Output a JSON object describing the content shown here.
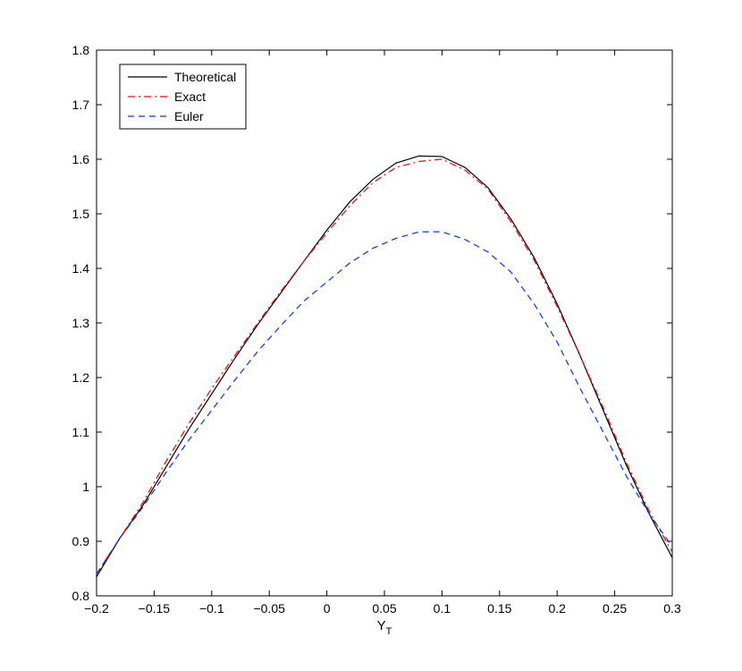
{
  "chart_data": {
    "type": "line",
    "xlabel_main": "Y",
    "xlabel_sub": "T",
    "ylabel": "",
    "title": "",
    "xlim": [
      -0.2,
      0.3
    ],
    "ylim": [
      0.8,
      1.8
    ],
    "xticks": [
      -0.2,
      -0.15,
      -0.1,
      -0.05,
      0,
      0.05,
      0.1,
      0.15,
      0.2,
      0.25,
      0.3
    ],
    "xtick_labels": [
      "−0.2",
      "−0.15",
      "−0.1",
      "−0.05",
      "0",
      "0.05",
      "0.1",
      "0.15",
      "0.2",
      "0.25",
      "0.3"
    ],
    "yticks": [
      0.8,
      0.9,
      1,
      1.1,
      1.2,
      1.3,
      1.4,
      1.5,
      1.6,
      1.7,
      1.8
    ],
    "ytick_labels": [
      "0.8",
      "0.9",
      "1",
      "1.1",
      "1.2",
      "1.3",
      "1.4",
      "1.5",
      "1.6",
      "1.7",
      "1.8"
    ],
    "grid": false,
    "legend_position": "top-left",
    "x": [
      -0.2,
      -0.18,
      -0.16,
      -0.14,
      -0.12,
      -0.1,
      -0.08,
      -0.06,
      -0.04,
      -0.02,
      0,
      0.02,
      0.04,
      0.06,
      0.08,
      0.1,
      0.12,
      0.14,
      0.16,
      0.18,
      0.2,
      0.22,
      0.24,
      0.26,
      0.28,
      0.3
    ],
    "series": [
      {
        "name": "Theoretical",
        "color": "#000000",
        "dash": "solid",
        "values": [
          0.835,
          0.905,
          0.965,
          1.035,
          1.105,
          1.17,
          1.235,
          1.297,
          1.355,
          1.413,
          1.47,
          1.522,
          1.563,
          1.593,
          1.606,
          1.605,
          1.585,
          1.548,
          1.49,
          1.42,
          1.335,
          1.24,
          1.14,
          1.04,
          0.95,
          0.87
        ]
      },
      {
        "name": "Exact",
        "color": "#ff0000",
        "dash": "dashdot",
        "values": [
          0.84,
          0.905,
          0.97,
          1.045,
          1.115,
          1.18,
          1.24,
          1.3,
          1.358,
          1.413,
          1.465,
          1.515,
          1.557,
          1.585,
          1.596,
          1.6,
          1.58,
          1.545,
          1.485,
          1.415,
          1.33,
          1.24,
          1.145,
          1.045,
          0.955,
          0.88
        ]
      },
      {
        "name": "Euler",
        "color": "#0033ff",
        "dash": "dashed",
        "values": [
          0.84,
          0.905,
          0.962,
          1.025,
          1.085,
          1.14,
          1.195,
          1.248,
          1.295,
          1.34,
          1.375,
          1.41,
          1.437,
          1.455,
          1.467,
          1.467,
          1.453,
          1.43,
          1.393,
          1.335,
          1.265,
          1.18,
          1.1,
          1.02,
          0.95,
          0.89
        ]
      }
    ]
  }
}
